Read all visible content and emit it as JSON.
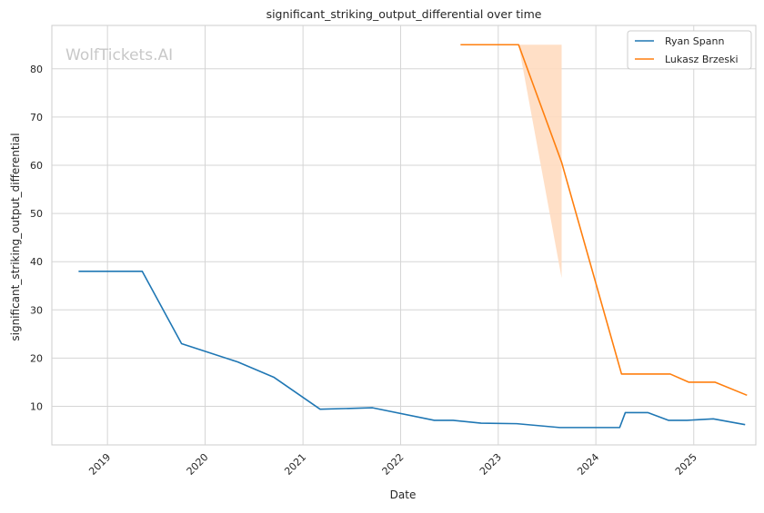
{
  "chart_data": {
    "type": "line",
    "title": "significant_striking_output_differential over time",
    "xlabel": "Date",
    "ylabel": "significant_striking_output_differential",
    "watermark": "WolfTickets.AI",
    "grid": true,
    "legend_position": "top-right",
    "x_ticks": [
      "2019",
      "2020",
      "2021",
      "2022",
      "2023",
      "2024",
      "2025"
    ],
    "y_ticks": [
      10,
      20,
      30,
      40,
      50,
      60,
      70,
      80
    ],
    "xlim": [
      "2018-06-07",
      "2025-08-21"
    ],
    "ylim": [
      2,
      89
    ],
    "series": [
      {
        "name": "Ryan Spann",
        "color": "#1f77b4",
        "points": [
          {
            "x": "2018-09-15",
            "y": 38.0
          },
          {
            "x": "2019-05-11",
            "y": 38.0
          },
          {
            "x": "2019-10-05",
            "y": 23.0
          },
          {
            "x": "2020-05-02",
            "y": 19.2
          },
          {
            "x": "2020-09-15",
            "y": 16.0
          },
          {
            "x": "2021-03-06",
            "y": 9.4
          },
          {
            "x": "2021-09-18",
            "y": 9.7
          },
          {
            "x": "2022-05-07",
            "y": 7.1
          },
          {
            "x": "2022-07-16",
            "y": 7.1
          },
          {
            "x": "2022-10-29",
            "y": 6.5
          },
          {
            "x": "2023-03-11",
            "y": 6.4
          },
          {
            "x": "2023-08-19",
            "y": 5.6
          },
          {
            "x": "2024-03-30",
            "y": 5.6
          },
          {
            "x": "2024-04-20",
            "y": 8.7
          },
          {
            "x": "2024-07-13",
            "y": 8.7
          },
          {
            "x": "2024-09-28",
            "y": 7.1
          },
          {
            "x": "2024-12-07",
            "y": 7.1
          },
          {
            "x": "2025-03-15",
            "y": 7.4
          },
          {
            "x": "2025-07-12",
            "y": 6.2
          }
        ]
      },
      {
        "name": "Lukasz Brzeski",
        "color": "#ff7f0e",
        "band_color": "#ffdcc0",
        "points": [
          {
            "x": "2022-08-13",
            "y": 85.0
          },
          {
            "x": "2023-03-18",
            "y": 85.0
          },
          {
            "x": "2023-08-26",
            "y": 60.6
          },
          {
            "x": "2024-04-06",
            "y": 16.7
          },
          {
            "x": "2024-10-05",
            "y": 16.7
          },
          {
            "x": "2024-12-14",
            "y": 15.0
          },
          {
            "x": "2025-03-22",
            "y": 15.0
          },
          {
            "x": "2025-07-19",
            "y": 12.3
          }
        ],
        "band": [
          {
            "x": "2023-03-18",
            "low": 85.0,
            "high": 85.0
          },
          {
            "x": "2023-08-26",
            "low": 36.6,
            "high": 85.0
          }
        ]
      }
    ]
  }
}
